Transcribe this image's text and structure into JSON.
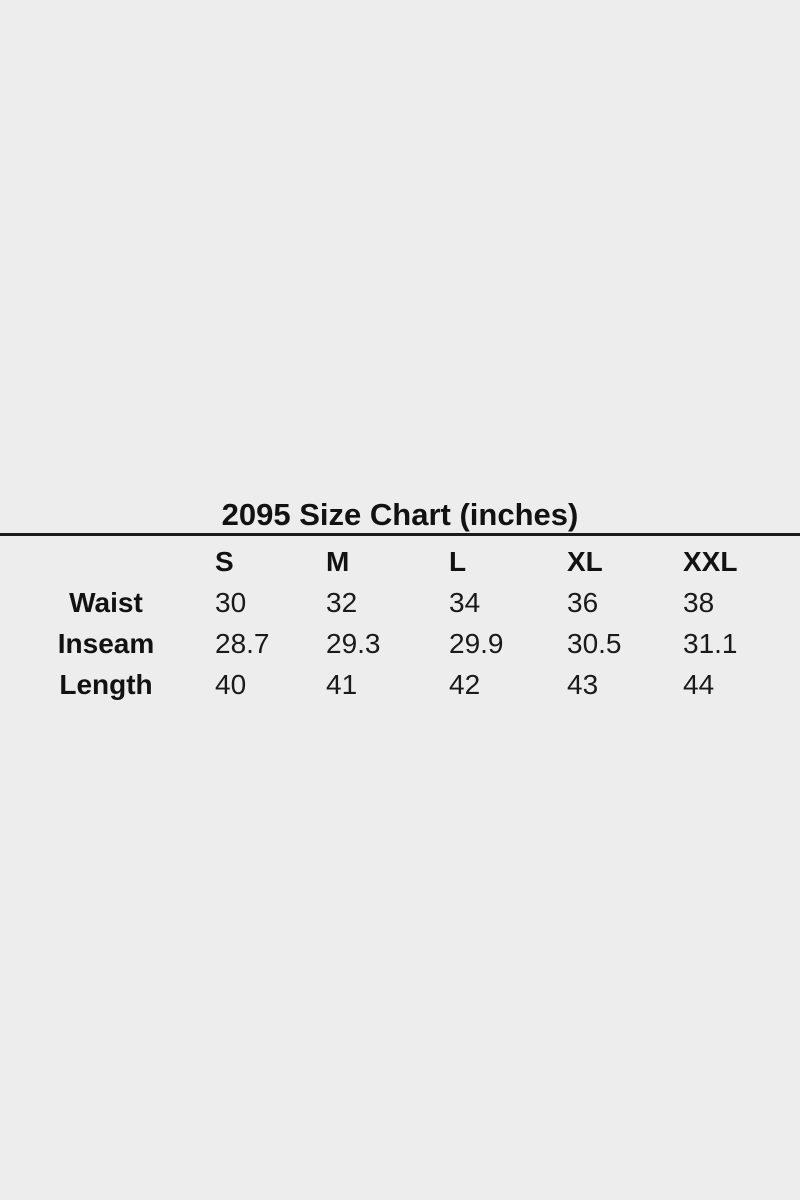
{
  "page": {
    "background_color": "#ededee",
    "text_color": "#151515",
    "rule_color": "#1b1b1b"
  },
  "size_chart": {
    "title": "2095 Size Chart (inches)",
    "corner_label": "",
    "columns": [
      "S",
      "M",
      "L",
      "XL",
      "XXL"
    ],
    "rows": [
      {
        "label": "Waist",
        "values": [
          "30",
          "32",
          "34",
          "36",
          "38"
        ]
      },
      {
        "label": "Inseam",
        "values": [
          "28.7",
          "29.3",
          "29.9",
          "30.5",
          "31.1"
        ]
      },
      {
        "label": "Length",
        "values": [
          "40",
          "41",
          "42",
          "43",
          "44"
        ]
      }
    ]
  },
  "chart_data": {
    "type": "table",
    "title": "2095 Size Chart (inches)",
    "units": "inches",
    "columns": [
      "S",
      "M",
      "L",
      "XL",
      "XXL"
    ],
    "row_labels": [
      "Waist",
      "Inseam",
      "Length"
    ],
    "rows": [
      [
        30,
        32,
        34,
        36,
        38
      ],
      [
        28.7,
        29.3,
        29.9,
        30.5,
        31.1
      ],
      [
        40,
        41,
        42,
        43,
        44
      ]
    ]
  }
}
